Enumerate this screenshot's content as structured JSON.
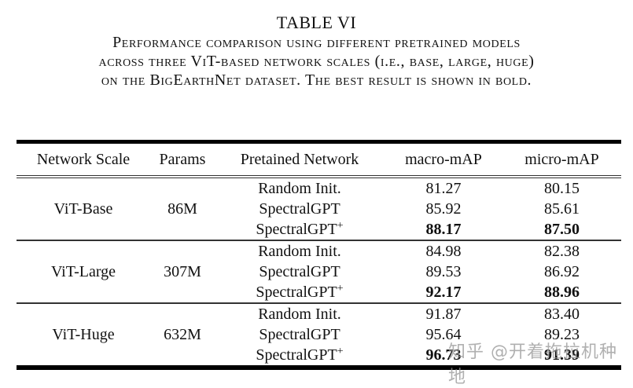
{
  "caption": {
    "table_label": "TABLE VI",
    "lines": [
      "Performance comparison using different pretrained models",
      "across three ViT-based network scales (i.e., base, large, huge)",
      "on the BigEarthNet dataset. The best result is shown in bold."
    ]
  },
  "table": {
    "headers": [
      "Network Scale",
      "Params",
      "Pretained Network",
      "macro-mAP",
      "micro-mAP"
    ],
    "groups": [
      {
        "scale": "ViT-Base",
        "params": "86M",
        "rows": [
          {
            "network": "Random Init.",
            "sup": "",
            "macro": "81.27",
            "micro": "80.15",
            "bold": false
          },
          {
            "network": "SpectralGPT",
            "sup": "",
            "macro": "85.92",
            "micro": "85.61",
            "bold": false
          },
          {
            "network": "SpectralGPT",
            "sup": "+",
            "macro": "88.17",
            "micro": "87.50",
            "bold": true
          }
        ]
      },
      {
        "scale": "ViT-Large",
        "params": "307M",
        "rows": [
          {
            "network": "Random Init.",
            "sup": "",
            "macro": "84.98",
            "micro": "82.38",
            "bold": false
          },
          {
            "network": "SpectralGPT",
            "sup": "",
            "macro": "89.53",
            "micro": "86.92",
            "bold": false
          },
          {
            "network": "SpectralGPT",
            "sup": "+",
            "macro": "92.17",
            "micro": "88.96",
            "bold": true
          }
        ]
      },
      {
        "scale": "ViT-Huge",
        "params": "632M",
        "rows": [
          {
            "network": "Random Init.",
            "sup": "",
            "macro": "91.87",
            "micro": "83.40",
            "bold": false
          },
          {
            "network": "SpectralGPT",
            "sup": "",
            "macro": "95.64",
            "micro": "89.23",
            "bold": false
          },
          {
            "network": "SpectralGPT",
            "sup": "+",
            "macro": "96.73",
            "micro": "91.39",
            "bold": true
          }
        ]
      }
    ]
  },
  "watermark": "知乎 @开着拖拉机种地"
}
